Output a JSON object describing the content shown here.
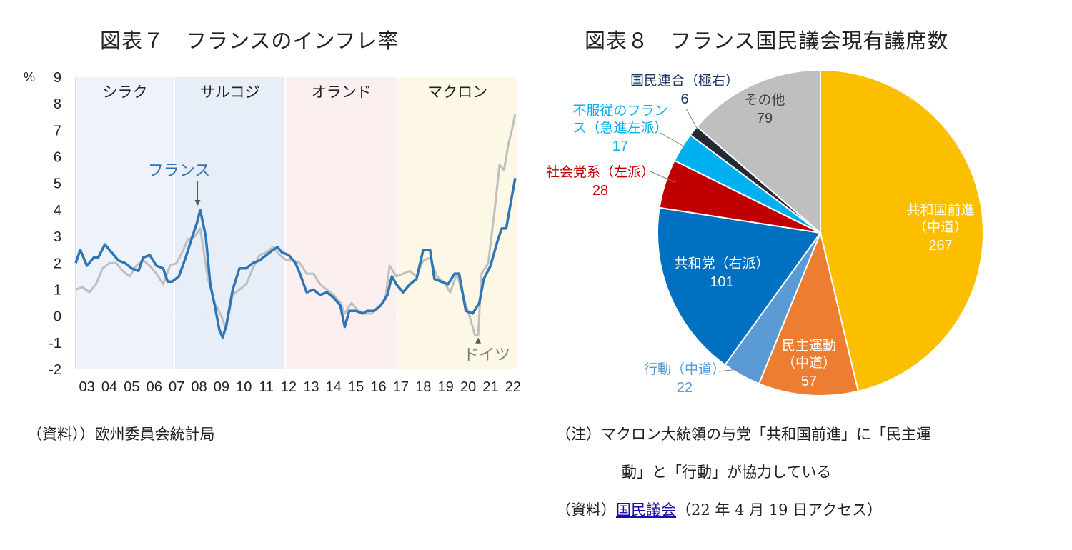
{
  "figure7": {
    "title": "図表７　フランスのインフレ率",
    "source": "（資料））欧州委員会統計局",
    "chart_data": {
      "type": "line",
      "unit": "%",
      "ylim": [
        -2,
        9
      ],
      "yticks": [
        9,
        8,
        7,
        6,
        5,
        4,
        3,
        2,
        1,
        0,
        -1,
        -2
      ],
      "xlim": [
        2003,
        2022.7
      ],
      "xtick_labels": [
        "03",
        "04",
        "05",
        "06",
        "07",
        "08",
        "09",
        "10",
        "11",
        "12",
        "13",
        "14",
        "15",
        "16",
        "17",
        "18",
        "19",
        "20",
        "21",
        "22"
      ],
      "eras": [
        {
          "name": "シラク",
          "start": 2003.0,
          "end": 2007.4,
          "color": "#eef2fa"
        },
        {
          "name": "サルコジ",
          "start": 2007.4,
          "end": 2012.35,
          "color": "#e8eef8"
        },
        {
          "name": "オランド",
          "start": 2012.35,
          "end": 2017.35,
          "color": "#fcefef"
        },
        {
          "name": "マクロン",
          "start": 2017.35,
          "end": 2022.7,
          "color": "#fdf7e6"
        }
      ],
      "annotations": [
        {
          "text": "フランス",
          "x": 2008.5,
          "y": 4.0
        },
        {
          "text": "ドイツ",
          "x": 2020.95,
          "y": -0.7
        }
      ],
      "series": [
        {
          "name": "フランス",
          "color": "#2e75b6",
          "x": [
            2003.0,
            2003.2,
            2003.5,
            2003.8,
            2004.0,
            2004.3,
            2004.6,
            2004.9,
            2005.2,
            2005.5,
            2005.8,
            2006.0,
            2006.3,
            2006.6,
            2006.9,
            2007.1,
            2007.3,
            2007.6,
            2007.9,
            2008.2,
            2008.4,
            2008.55,
            2008.8,
            2009.0,
            2009.2,
            2009.4,
            2009.55,
            2009.7,
            2010.0,
            2010.3,
            2010.6,
            2010.9,
            2011.2,
            2011.5,
            2011.8,
            2012.0,
            2012.2,
            2012.5,
            2012.8,
            2013.0,
            2013.3,
            2013.6,
            2013.9,
            2014.2,
            2014.5,
            2014.8,
            2015.0,
            2015.2,
            2015.5,
            2015.8,
            2016.0,
            2016.3,
            2016.6,
            2016.9,
            2017.1,
            2017.3,
            2017.6,
            2017.9,
            2018.2,
            2018.5,
            2018.8,
            2019.0,
            2019.3,
            2019.6,
            2019.9,
            2020.1,
            2020.4,
            2020.7,
            2021.0,
            2021.2,
            2021.5,
            2021.8,
            2022.0,
            2022.2,
            2022.45,
            2022.6
          ],
          "y": [
            2.0,
            2.5,
            1.9,
            2.2,
            2.2,
            2.7,
            2.4,
            2.1,
            2.0,
            1.8,
            1.7,
            2.2,
            2.3,
            1.9,
            1.8,
            1.3,
            1.3,
            1.5,
            2.2,
            3.0,
            3.5,
            4.0,
            3.0,
            1.2,
            0.4,
            -0.5,
            -0.8,
            -0.4,
            1.0,
            1.8,
            1.8,
            2.0,
            2.1,
            2.3,
            2.5,
            2.6,
            2.4,
            2.3,
            2.0,
            1.6,
            0.9,
            1.0,
            0.8,
            0.9,
            0.7,
            0.4,
            -0.4,
            0.2,
            0.2,
            0.1,
            0.2,
            0.2,
            0.4,
            0.8,
            1.5,
            1.2,
            0.9,
            1.2,
            1.4,
            2.5,
            2.5,
            1.4,
            1.3,
            1.2,
            1.6,
            1.6,
            0.2,
            0.1,
            0.5,
            1.4,
            1.9,
            2.8,
            3.3,
            3.3,
            4.5,
            5.2
          ]
        },
        {
          "name": "ドイツ",
          "color": "#bfbfbf",
          "x": [
            2003.0,
            2003.3,
            2003.6,
            2003.9,
            2004.2,
            2004.5,
            2004.8,
            2005.1,
            2005.4,
            2005.7,
            2006.0,
            2006.3,
            2006.6,
            2006.9,
            2007.2,
            2007.5,
            2007.8,
            2008.0,
            2008.3,
            2008.55,
            2008.9,
            2009.2,
            2009.5,
            2009.7,
            2010.0,
            2010.3,
            2010.6,
            2010.9,
            2011.2,
            2011.5,
            2011.8,
            2012.1,
            2012.4,
            2012.7,
            2013.0,
            2013.3,
            2013.6,
            2013.9,
            2014.2,
            2014.5,
            2014.8,
            2015.0,
            2015.3,
            2015.6,
            2015.9,
            2016.2,
            2016.5,
            2016.8,
            2017.0,
            2017.3,
            2017.6,
            2017.9,
            2018.2,
            2018.5,
            2018.8,
            2019.1,
            2019.4,
            2019.7,
            2020.0,
            2020.3,
            2020.6,
            2020.8,
            2020.95,
            2021.1,
            2021.4,
            2021.7,
            2021.9,
            2022.1,
            2022.3,
            2022.45,
            2022.6
          ],
          "y": [
            1.0,
            1.1,
            0.9,
            1.2,
            1.8,
            2.0,
            2.0,
            1.7,
            1.5,
            1.9,
            2.1,
            1.9,
            1.6,
            1.2,
            1.9,
            2.0,
            2.5,
            2.9,
            3.0,
            3.3,
            1.4,
            0.5,
            0.0,
            -0.5,
            0.8,
            1.0,
            1.2,
            1.8,
            2.3,
            2.4,
            2.6,
            2.3,
            2.1,
            2.1,
            2.0,
            1.6,
            1.6,
            1.2,
            1.0,
            0.8,
            0.5,
            0.1,
            0.5,
            0.2,
            0.1,
            0.1,
            0.3,
            0.6,
            1.9,
            1.5,
            1.6,
            1.7,
            1.5,
            2.1,
            2.2,
            1.5,
            1.3,
            0.9,
            1.6,
            0.7,
            -0.1,
            -0.7,
            -0.7,
            1.6,
            2.0,
            4.1,
            5.7,
            5.5,
            6.5,
            7.0,
            7.6
          ]
        }
      ]
    }
  },
  "figure8": {
    "title": "図表８　フランス国民議会現有議席数",
    "note_line1": "（注）マクロン大統領の与党「共和国前進」に「民主運",
    "note_line2": "動」と「行動」が協力している",
    "source_prefix": "（資料）",
    "source_link": "国民議会",
    "source_suffix": "（22 年 4 月 19 日アクセス）",
    "chart_data": {
      "type": "pie",
      "slices": [
        {
          "label": "共和国前進\n（中道）",
          "value": 267,
          "color": "#fbbf00",
          "text_color": "#ffffff"
        },
        {
          "label": "民主運動\n（中道）",
          "value": 57,
          "color": "#ed7d31",
          "text_color": "#ffffff"
        },
        {
          "label": "行動（中道）",
          "value": 22,
          "color": "#5b9bd5",
          "text_color": "#5b9bd5"
        },
        {
          "label": "共和党（右派）",
          "value": 101,
          "color": "#0070c0",
          "text_color": "#ffffff"
        },
        {
          "label": "社会党系（左派）",
          "value": 28,
          "color": "#c00000",
          "text_color": "#c00000"
        },
        {
          "label": "不服従のフラン\nス（急進左派）",
          "value": 17,
          "color": "#00b0f0",
          "text_color": "#00b0f0"
        },
        {
          "label": "国民連合（極右）",
          "value": 6,
          "color": "#222a35",
          "text_color": "#1f3864"
        },
        {
          "label": "その他",
          "value": 79,
          "color": "#bfbfbf",
          "text_color": "#404040"
        }
      ]
    }
  }
}
